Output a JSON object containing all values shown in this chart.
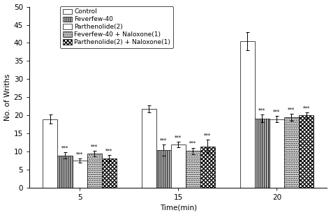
{
  "groups": [
    "5",
    "15",
    "20"
  ],
  "series": [
    {
      "label": "Control",
      "values": [
        19.0,
        21.8,
        40.5
      ],
      "errors": [
        1.2,
        1.0,
        2.5
      ],
      "hatch": "",
      "facecolor": "white",
      "edgecolor": "black"
    },
    {
      "label": "Feverfew-40",
      "values": [
        9.0,
        10.5,
        19.2
      ],
      "errors": [
        0.8,
        1.5,
        1.0
      ],
      "hatch": "||||||",
      "facecolor": "white",
      "edgecolor": "black",
      "stars": "***"
    },
    {
      "label": "Parthenolide(2)",
      "values": [
        7.5,
        12.0,
        19.0
      ],
      "errors": [
        0.6,
        0.8,
        0.8
      ],
      "hatch": "======",
      "facecolor": "white",
      "edgecolor": "black",
      "stars": "***"
    },
    {
      "label": "Feverfew-40 + Naloxone(1)",
      "values": [
        9.5,
        10.2,
        19.5
      ],
      "errors": [
        0.7,
        0.9,
        0.9
      ],
      "hatch": "......",
      "facecolor": "white",
      "edgecolor": "black",
      "stars": "***"
    },
    {
      "label": "Parthenolide(2) + Naloxone(1)",
      "values": [
        8.2,
        11.5,
        20.0
      ],
      "errors": [
        0.9,
        1.8,
        0.8
      ],
      "hatch": "xxxxxx",
      "facecolor": "white",
      "edgecolor": "black",
      "stars": "***"
    }
  ],
  "ylabel": "No. of Wriths",
  "xlabel": "Time(min)",
  "ylim": [
    0,
    50
  ],
  "yticks": [
    0,
    5,
    10,
    15,
    20,
    25,
    30,
    35,
    40,
    45,
    50
  ],
  "bar_width": 0.115,
  "group_centers": [
    0.28,
    1.05,
    1.82
  ],
  "background_color": "white",
  "fontsize": 7.5,
  "legend_fontsize": 6.5
}
